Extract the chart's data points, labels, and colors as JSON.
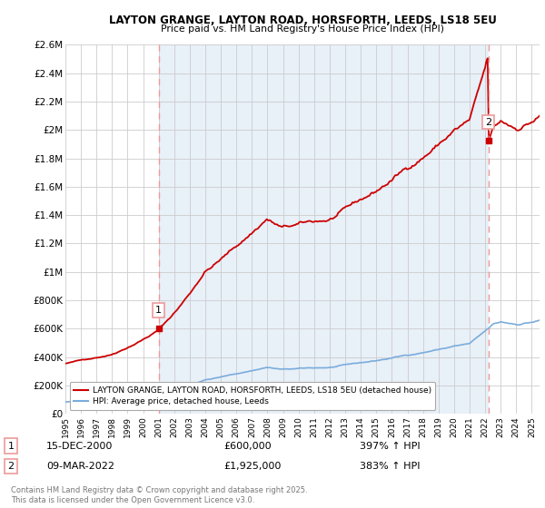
{
  "title_line1": "LAYTON GRANGE, LAYTON ROAD, HORSFORTH, LEEDS, LS18 5EU",
  "title_line2": "Price paid vs. HM Land Registry's House Price Index (HPI)",
  "legend_label1": "LAYTON GRANGE, LAYTON ROAD, HORSFORTH, LEEDS, LS18 5EU (detached house)",
  "legend_label2": "HPI: Average price, detached house, Leeds",
  "note1_num": "1",
  "note1_date": "15-DEC-2000",
  "note1_price": "£600,000",
  "note1_hpi": "397% ↑ HPI",
  "note2_num": "2",
  "note2_date": "09-MAR-2022",
  "note2_price": "£1,925,000",
  "note2_hpi": "383% ↑ HPI",
  "footer": "Contains HM Land Registry data © Crown copyright and database right 2025.\nThis data is licensed under the Open Government Licence v3.0.",
  "ylim": [
    0,
    2600000
  ],
  "yticks": [
    0,
    200000,
    400000,
    600000,
    800000,
    1000000,
    1200000,
    1400000,
    1600000,
    1800000,
    2000000,
    2200000,
    2400000,
    2600000
  ],
  "ytick_labels": [
    "£0",
    "£200K",
    "£400K",
    "£600K",
    "£800K",
    "£1M",
    "£1.2M",
    "£1.4M",
    "£1.6M",
    "£1.8M",
    "£2M",
    "£2.2M",
    "£2.4M",
    "£2.6M"
  ],
  "line1_color": "#cc0000",
  "line2_color": "#7aacdc",
  "vline_color": "#ee9999",
  "bg_band_color": "#e8f0f8",
  "marker1_x": 2001.0,
  "marker1_y": 600000,
  "marker2_x": 2022.2,
  "marker2_y": 1925000,
  "xlim_left": 1995.3,
  "xlim_right": 2025.5,
  "background_color": "#ffffff",
  "grid_color": "#cccccc"
}
